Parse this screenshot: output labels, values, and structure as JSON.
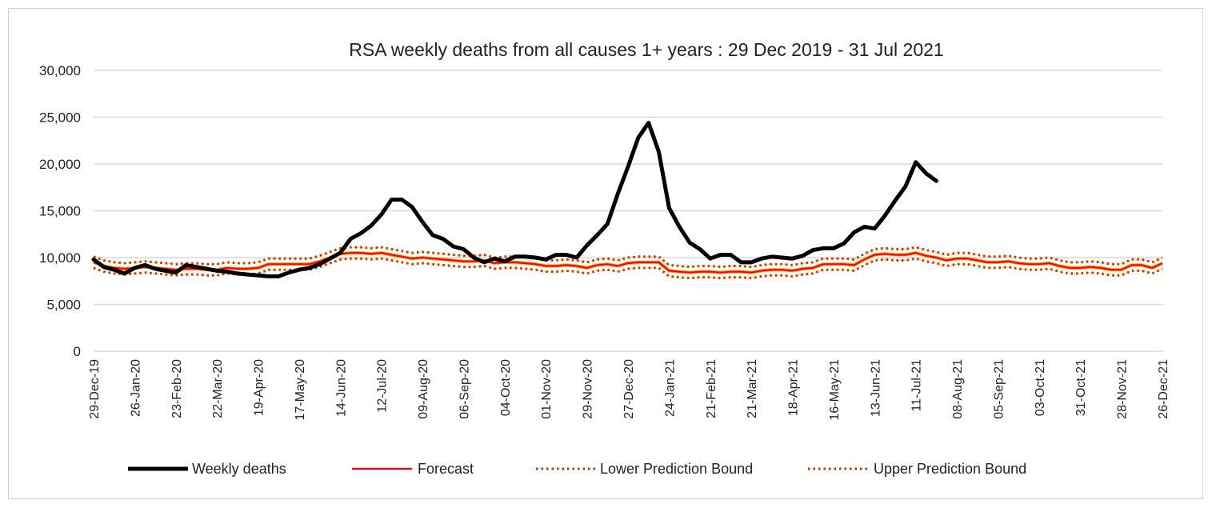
{
  "chart_data": {
    "type": "line",
    "title": "RSA weekly deaths from all causes 1+ years : 29 Dec 2019 - 31 Jul 2021",
    "xlabel": "",
    "ylabel": "",
    "ylim": [
      0,
      30000
    ],
    "yticks": [
      "0",
      "5,000",
      "10,000",
      "15,000",
      "20,000",
      "25,000",
      "30,000"
    ],
    "ytick_values": [
      0,
      5000,
      10000,
      15000,
      20000,
      25000,
      30000
    ],
    "x_tick_labels": [
      "29-Dec-19",
      "26-Jan-20",
      "23-Feb-20",
      "22-Mar-20",
      "19-Apr-20",
      "17-May-20",
      "14-Jun-20",
      "12-Jul-20",
      "09-Aug-20",
      "06-Sep-20",
      "04-Oct-20",
      "01-Nov-20",
      "29-Nov-20",
      "27-Dec-20",
      "24-Jan-21",
      "21-Feb-21",
      "21-Mar-21",
      "18-Apr-21",
      "16-May-21",
      "13-Jun-21",
      "11-Jul-21",
      "08-Aug-21",
      "05-Sep-21",
      "03-Oct-21",
      "31-Oct-21",
      "28-Nov-21",
      "26-Dec-21"
    ],
    "x_unit": "week index from 29-Dec-19",
    "x_tick_every_weeks": 4,
    "grid": true,
    "legend_position": "bottom",
    "series": [
      {
        "name": "Weekly deaths",
        "color": "#000000",
        "style": "solid-thick",
        "values": [
          9800,
          9000,
          8700,
          8300,
          8900,
          9200,
          8800,
          8600,
          8400,
          9200,
          9000,
          8800,
          8600,
          8500,
          8300,
          8200,
          8100,
          8000,
          8000,
          8400,
          8700,
          8900,
          9300,
          9900,
          10500,
          12000,
          12600,
          13400,
          14600,
          16200,
          16200,
          15400,
          13800,
          12400,
          12000,
          11200,
          10900,
          10000,
          9500,
          9900,
          9600,
          10100,
          10100,
          10000,
          9800,
          10300,
          10300,
          10000,
          11300,
          12400,
          13600,
          16800,
          19700,
          22800,
          24400,
          21300,
          15300,
          13300,
          11600,
          10900,
          9900,
          10300,
          10300,
          9500,
          9500,
          9900,
          10100,
          10000,
          9900,
          10200,
          10800,
          11000,
          11000,
          11500,
          12700,
          13300,
          13100,
          14500,
          16100,
          17600,
          20200,
          19000,
          18200
        ]
      },
      {
        "name": "Forecast",
        "color": "#ff0000",
        "style": "solid",
        "values": [
          9500,
          9100,
          8900,
          8800,
          8900,
          9000,
          8900,
          8800,
          8700,
          8800,
          8800,
          8700,
          8700,
          8900,
          8800,
          8800,
          8900,
          9300,
          9300,
          9300,
          9300,
          9300,
          9600,
          10000,
          10400,
          10500,
          10500,
          10400,
          10500,
          10300,
          10100,
          9900,
          10000,
          9900,
          9800,
          9700,
          9600,
          9600,
          9700,
          9400,
          9500,
          9500,
          9400,
          9300,
          9100,
          9100,
          9200,
          9100,
          8900,
          9200,
          9300,
          9100,
          9400,
          9500,
          9500,
          9500,
          8600,
          8500,
          8400,
          8500,
          8500,
          8400,
          8500,
          8500,
          8400,
          8600,
          8700,
          8700,
          8600,
          8800,
          8900,
          9300,
          9300,
          9300,
          9200,
          9800,
          10300,
          10400,
          10300,
          10300,
          10500,
          10200,
          10000,
          9700,
          9900,
          9900,
          9700,
          9500,
          9500,
          9600,
          9400,
          9300,
          9300,
          9400,
          9100,
          8900,
          8900,
          9000,
          8900,
          8700,
          8700,
          9200,
          9200,
          8900,
          9400
        ]
      },
      {
        "name": "Lower Prediction Bound",
        "color": "#d83000",
        "style": "dotted",
        "offset_from_forecast": -600
      },
      {
        "name": "Upper Prediction Bound",
        "color": "#d83000",
        "style": "dotted",
        "offset_from_forecast": 600
      }
    ]
  }
}
